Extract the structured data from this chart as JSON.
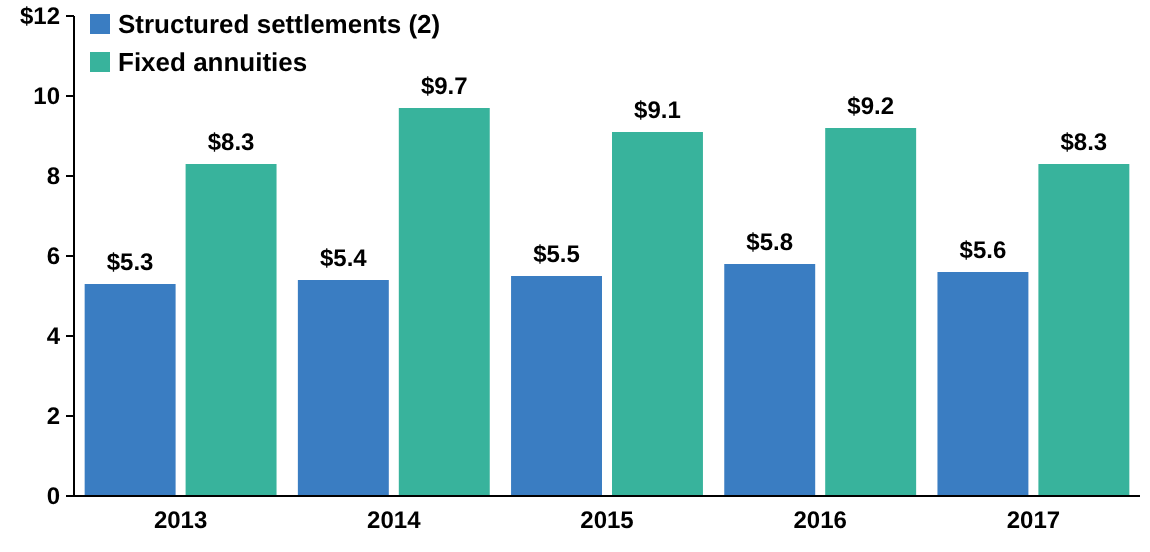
{
  "chart_data": {
    "type": "bar",
    "categories": [
      "2013",
      "2014",
      "2015",
      "2016",
      "2017"
    ],
    "series": [
      {
        "name": "Structured settlements (2)",
        "color": "#3a7dc2",
        "values": [
          5.3,
          5.4,
          5.5,
          5.8,
          5.6
        ],
        "value_labels": [
          "$5.3",
          "$5.4",
          "$5.5",
          "$5.8",
          "$5.6"
        ]
      },
      {
        "name": "Fixed annuities",
        "color": "#38b39c",
        "values": [
          8.3,
          9.7,
          9.1,
          9.2,
          8.3
        ],
        "value_labels": [
          "$8.3",
          "$9.7",
          "$9.1",
          "$9.2",
          "$8.3"
        ]
      }
    ],
    "ylim": [
      0,
      12
    ],
    "yticks": [
      0,
      2,
      4,
      6,
      8,
      10,
      {
        "value": 12,
        "label": "$12"
      }
    ],
    "grid": false,
    "legend": "top left"
  }
}
